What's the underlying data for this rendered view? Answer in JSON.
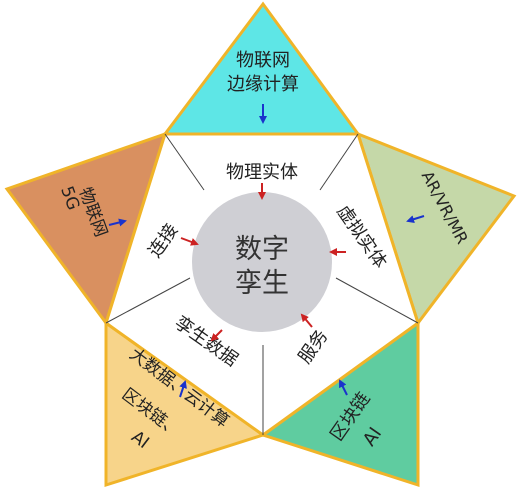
{
  "center": {
    "line1": "数字",
    "line2": "孪生"
  },
  "inner_segments": {
    "top": "物理实体",
    "upper_right": "虚拟实体",
    "lower_right": "服务",
    "lower_left": "孪生数据",
    "upper_left": "连接"
  },
  "outer_points": {
    "top": {
      "line1": "物联网",
      "line2": "边缘计算"
    },
    "right": {
      "line1": "AR/VR/MR"
    },
    "bottom_right": {
      "line1": "区块链",
      "line2": "AI"
    },
    "bottom_left": {
      "line1": "大数据、云计算",
      "line2": "区块链、",
      "line3": "AI"
    },
    "left": {
      "line1": "5G",
      "line2": "物联网"
    }
  },
  "colors": {
    "border": "#f0b429",
    "top_point": "#5ee6e6",
    "right_point": "#c5d8a8",
    "bottom_right_point": "#5fcca0",
    "bottom_left_point": "#f7d48a",
    "left_point": "#d99060",
    "center_circle": "#cfcfd4",
    "inner_arrow": "#cc2222",
    "outer_arrow": "#1a33cc"
  }
}
